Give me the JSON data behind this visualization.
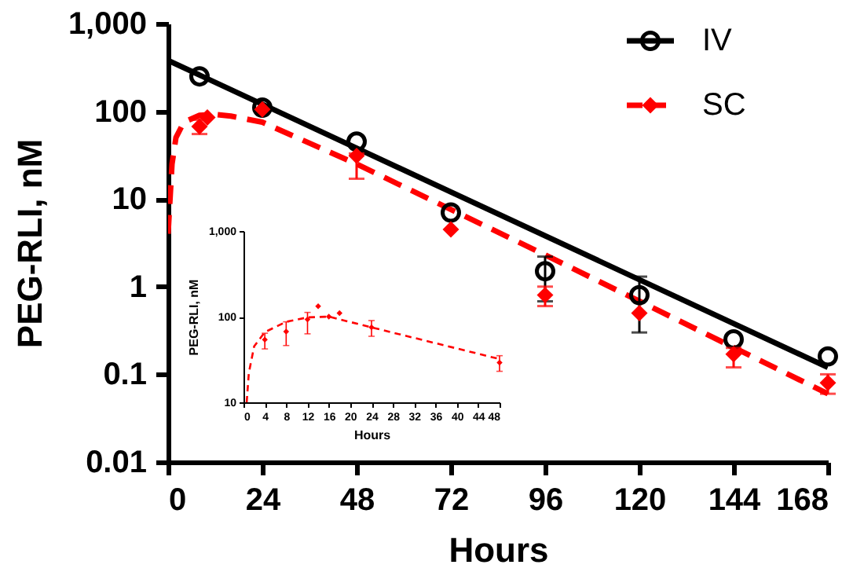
{
  "chart_data": [
    {
      "type": "scatter",
      "xlabel": "Hours",
      "ylabel": "PEG-RLI, nM",
      "log": true,
      "legend": "top right",
      "xlim": [
        0,
        168
      ],
      "xticks": [
        0,
        24,
        48,
        72,
        96,
        120,
        144,
        168
      ],
      "ylim": [
        0.01,
        1000
      ],
      "yticks": [
        0.01,
        0.1,
        1,
        10,
        100,
        {
          "value": 1000,
          "label": "1,000"
        }
      ],
      "series": [
        {
          "type": "line",
          "color": "#000000",
          "x": [
            0,
            168
          ],
          "values": [
            380,
            0.12
          ]
        },
        {
          "type": "line",
          "color": "#ff0000",
          "line_style": "dashed",
          "x": [
            0,
            0.5,
            1,
            2,
            4,
            8,
            12,
            16,
            24,
            48,
            96,
            168
          ],
          "values": [
            4,
            10,
            25,
            50,
            75,
            90,
            92,
            88,
            75,
            25,
            2.3,
            0.06
          ]
        },
        {
          "name": "IV",
          "marker": "circle",
          "line_style": "solid",
          "color": "#000000",
          "x": [
            8,
            24,
            48,
            72,
            96,
            120,
            144,
            168
          ],
          "values": [
            250,
            110,
            45,
            7,
            1.5,
            0.8,
            0.25,
            0.16
          ],
          "errors": [
            null,
            null,
            null,
            null,
            [
              0.68,
              2.2
            ],
            [
              0.3,
              1.3
            ],
            null,
            null
          ]
        },
        {
          "name": "SC",
          "marker": "diamond",
          "line_style": "dashed",
          "color": "#ff0000",
          "x": [
            8,
            10,
            24,
            48,
            72,
            96,
            120,
            144,
            168
          ],
          "values": [
            67,
            85,
            105,
            31,
            4.5,
            0.8,
            0.5,
            0.17,
            0.08
          ],
          "errors": [
            [
              55,
              80
            ],
            null,
            null,
            [
              17,
              33
            ],
            null,
            [
              0.6,
              1.0
            ],
            null,
            [
              0.12,
              0.2
            ],
            [
              0.06,
              0.1
            ]
          ]
        }
      ]
    },
    {
      "type": "scatter",
      "xlabel": "Hours",
      "ylabel": "PEG-RLI, nM",
      "log": true,
      "xlim": [
        0,
        48
      ],
      "xticks": [
        0,
        4,
        8,
        12,
        16,
        20,
        24,
        28,
        32,
        36,
        40,
        44,
        48
      ],
      "ylim": [
        10,
        1000
      ],
      "yticks": [
        10,
        100,
        {
          "value": 1000,
          "label": "1,000"
        }
      ],
      "series": [
        {
          "type": "line",
          "color": "#ff0000",
          "line_style": "dashed",
          "x": [
            0.6,
            1,
            2,
            4,
            8,
            12,
            16,
            24,
            48
          ],
          "values": [
            10,
            22,
            45,
            66,
            87,
            98,
            100,
            75,
            32
          ]
        },
        {
          "marker": "diamond",
          "color": "#ff0000",
          "x": [
            4,
            8,
            12,
            14,
            16,
            18,
            24,
            48
          ],
          "values": [
            54,
            67,
            93,
            132,
            100,
            110,
            75,
            29
          ],
          "errors": [
            [
              42,
              64
            ],
            [
              46,
              87
            ],
            [
              63,
              112
            ],
            null,
            null,
            null,
            [
              59,
              90
            ],
            [
              23,
              35
            ]
          ]
        }
      ]
    }
  ]
}
